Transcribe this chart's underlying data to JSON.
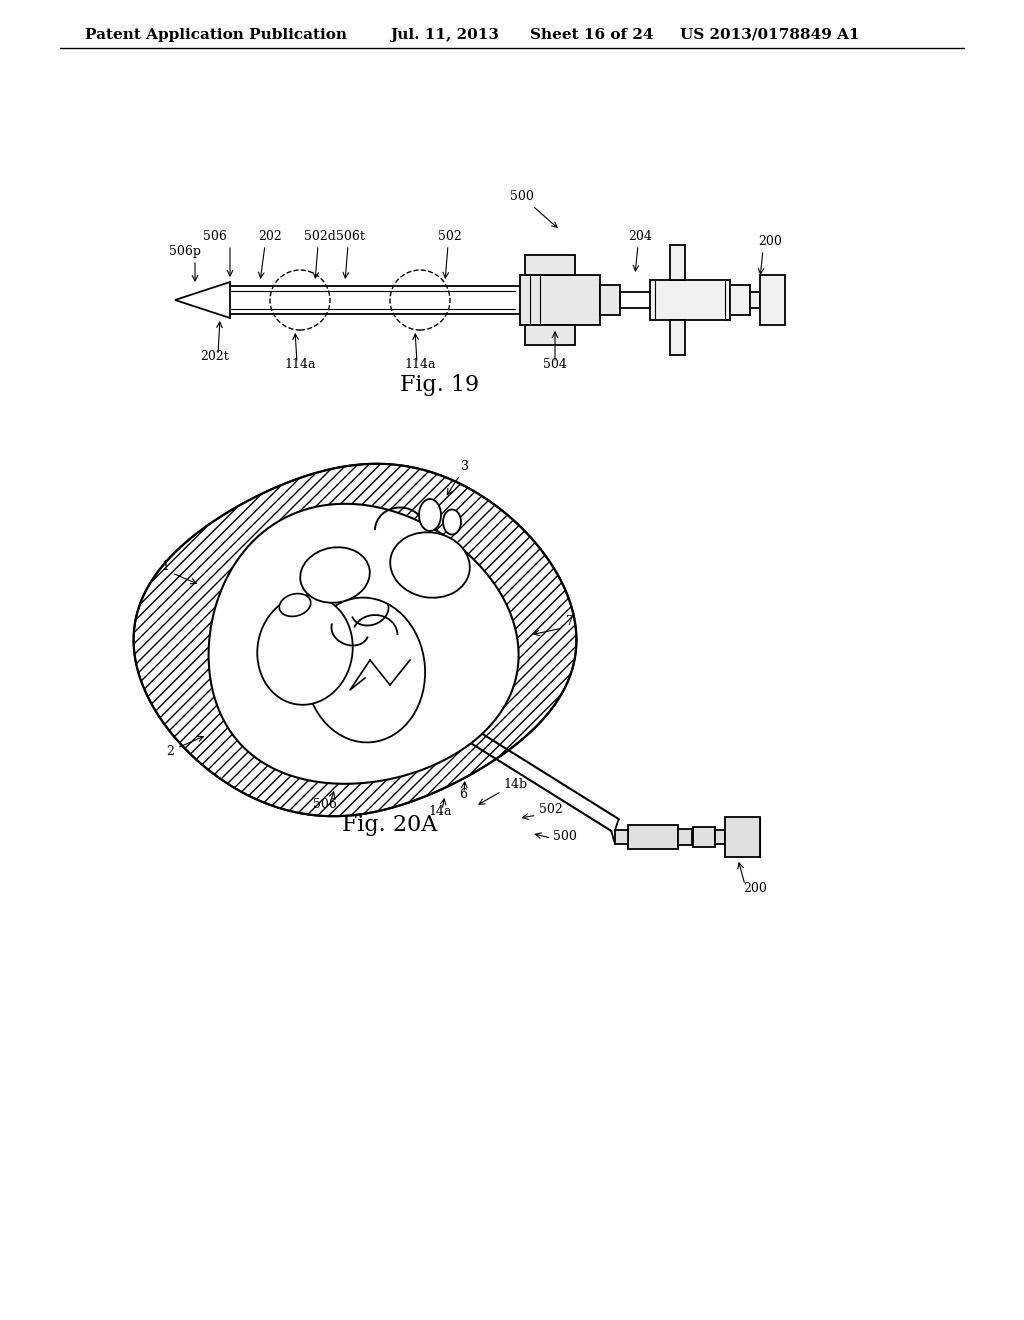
{
  "bg_color": "#ffffff",
  "line_color": "#000000",
  "header_text": "Patent Application Publication",
  "header_date": "Jul. 11, 2013",
  "header_sheet": "Sheet 16 of 24",
  "header_patent": "US 2013/0178849 A1",
  "fig19_caption": "Fig. 19",
  "fig20a_caption": "Fig. 20A",
  "header_font_size": 11,
  "caption_font_size": 16
}
